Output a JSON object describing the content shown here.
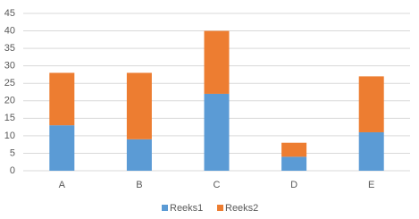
{
  "chart_data": {
    "type": "stacked_bar",
    "categories": [
      "A",
      "B",
      "C",
      "D",
      "E"
    ],
    "series": [
      {
        "name": "Reeks1",
        "color": "#5b9bd5",
        "values": [
          13,
          9,
          22,
          4,
          11
        ]
      },
      {
        "name": "Reeks2",
        "color": "#ed7d31",
        "values": [
          15,
          19,
          18,
          4,
          16
        ]
      }
    ],
    "ylim": [
      0,
      45
    ],
    "yticks": [
      0,
      5,
      10,
      15,
      20,
      25,
      30,
      35,
      40,
      45
    ],
    "grid": true,
    "legend": "bottom"
  }
}
